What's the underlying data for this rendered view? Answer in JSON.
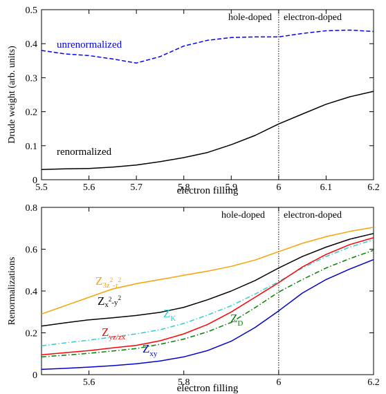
{
  "chart_data": [
    {
      "type": "line",
      "title": "",
      "xlabel": "electron filling",
      "ylabel": "Drude weight (arb. units)",
      "xlim": [
        5.5,
        6.2
      ],
      "ylim": [
        0,
        0.5
      ],
      "xticks": [
        5.5,
        5.6,
        5.7,
        5.8,
        5.9,
        6,
        6.1,
        6.2
      ],
      "xtick_labels": [
        "5.5",
        "5.6",
        "5.7",
        "5.8",
        "5.9",
        "6",
        "6.1",
        "6.2"
      ],
      "yticks": [
        0,
        0.1,
        0.2,
        0.3,
        0.4,
        0.5
      ],
      "ytick_labels": [
        "0",
        "0.1",
        "0.2",
        "0.3",
        "0.4",
        "0.5"
      ],
      "vline": 6,
      "region_labels": [
        "hole-doped",
        "electron-doped"
      ],
      "series": [
        {
          "name": "unrenormalized",
          "color": "#0000ff",
          "dash": "dashed",
          "x": [
            5.5,
            5.55,
            5.6,
            5.65,
            5.7,
            5.75,
            5.8,
            5.85,
            5.9,
            5.95,
            6.0,
            6.05,
            6.1,
            6.15,
            6.2
          ],
          "y": [
            0.38,
            0.37,
            0.365,
            0.355,
            0.343,
            0.362,
            0.393,
            0.41,
            0.418,
            0.42,
            0.42,
            0.43,
            0.438,
            0.44,
            0.436
          ]
        },
        {
          "name": "renormalized",
          "color": "#000000",
          "dash": "solid",
          "x": [
            5.5,
            5.55,
            5.6,
            5.65,
            5.7,
            5.75,
            5.8,
            5.85,
            5.9,
            5.95,
            6.0,
            6.05,
            6.1,
            6.15,
            6.2
          ],
          "y": [
            0.03,
            0.032,
            0.033,
            0.037,
            0.043,
            0.053,
            0.065,
            0.08,
            0.103,
            0.13,
            0.164,
            0.193,
            0.222,
            0.244,
            0.26
          ]
        }
      ]
    },
    {
      "type": "line",
      "title": "",
      "xlabel": "electron filling",
      "ylabel": "Renormalizations",
      "xlim": [
        5.5,
        6.2
      ],
      "ylim": [
        0,
        0.8
      ],
      "xticks": [
        5.6,
        5.8,
        6,
        6.2
      ],
      "xtick_labels": [
        "5.6",
        "5.8",
        "6",
        "6.2"
      ],
      "yticks": [
        0,
        0.2,
        0.4,
        0.6,
        0.8
      ],
      "ytick_labels": [
        "0",
        "0.2",
        "0.4",
        "0.6",
        "0.8"
      ],
      "vline": 6,
      "region_labels": [
        "hole-doped",
        "electron-doped"
      ],
      "series": [
        {
          "name": "Z3z²-r²",
          "color": "#f5a300",
          "dash": "solid",
          "x": [
            5.5,
            5.55,
            5.6,
            5.65,
            5.7,
            5.75,
            5.8,
            5.85,
            5.9,
            5.95,
            6.0,
            6.05,
            6.1,
            6.15,
            6.2
          ],
          "y": [
            0.29,
            0.33,
            0.37,
            0.41,
            0.435,
            0.455,
            0.475,
            0.495,
            0.518,
            0.548,
            0.588,
            0.628,
            0.66,
            0.685,
            0.705
          ]
        },
        {
          "name": "Zx²-y²",
          "color": "#000000",
          "dash": "solid",
          "x": [
            5.5,
            5.55,
            5.6,
            5.65,
            5.7,
            5.75,
            5.8,
            5.85,
            5.9,
            5.95,
            6.0,
            6.05,
            6.1,
            6.15,
            6.2
          ],
          "y": [
            0.232,
            0.248,
            0.262,
            0.272,
            0.283,
            0.298,
            0.322,
            0.358,
            0.4,
            0.45,
            0.51,
            0.565,
            0.61,
            0.648,
            0.675
          ]
        },
        {
          "name": "ZK",
          "color": "#33cccc",
          "dash": "dashdot",
          "x": [
            5.5,
            5.55,
            5.6,
            5.65,
            5.7,
            5.75,
            5.8,
            5.85,
            5.9,
            5.95,
            6.0,
            6.05,
            6.1,
            6.15,
            6.2
          ],
          "y": [
            0.138,
            0.152,
            0.165,
            0.18,
            0.195,
            0.215,
            0.245,
            0.285,
            0.33,
            0.385,
            0.445,
            0.51,
            0.565,
            0.61,
            0.645
          ]
        },
        {
          "name": "Zyz/zx",
          "color": "#ff0000",
          "dash": "solid",
          "x": [
            5.5,
            5.55,
            5.6,
            5.65,
            5.7,
            5.75,
            5.8,
            5.85,
            5.9,
            5.95,
            6.0,
            6.05,
            6.1,
            6.15,
            6.2
          ],
          "y": [
            0.095,
            0.105,
            0.115,
            0.128,
            0.14,
            0.162,
            0.195,
            0.24,
            0.3,
            0.37,
            0.44,
            0.515,
            0.575,
            0.622,
            0.655
          ]
        },
        {
          "name": "ZD",
          "color": "#008000",
          "dash": "dashdot",
          "x": [
            5.5,
            5.55,
            5.6,
            5.65,
            5.7,
            5.75,
            5.8,
            5.85,
            5.9,
            5.95,
            6.0,
            6.05,
            6.1,
            6.15,
            6.2
          ],
          "y": [
            0.085,
            0.093,
            0.102,
            0.113,
            0.125,
            0.145,
            0.17,
            0.205,
            0.25,
            0.32,
            0.395,
            0.455,
            0.51,
            0.555,
            0.595
          ]
        },
        {
          "name": "Zxy",
          "color": "#0000cc",
          "dash": "solid",
          "x": [
            5.5,
            5.55,
            5.6,
            5.65,
            5.7,
            5.75,
            5.8,
            5.85,
            5.9,
            5.95,
            6.0,
            6.05,
            6.1,
            6.15,
            6.2
          ],
          "y": [
            0.025,
            0.03,
            0.036,
            0.043,
            0.052,
            0.065,
            0.085,
            0.115,
            0.16,
            0.225,
            0.305,
            0.39,
            0.455,
            0.505,
            0.55
          ]
        }
      ]
    }
  ]
}
